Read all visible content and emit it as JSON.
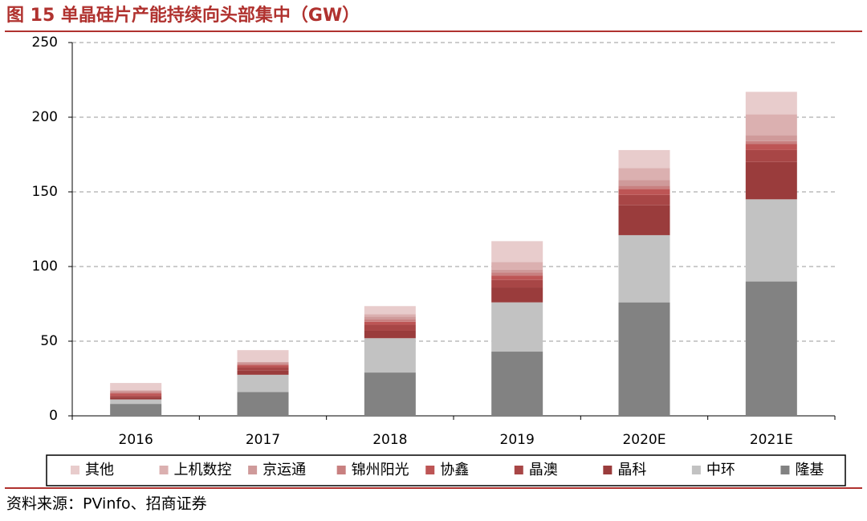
{
  "chart_data": {
    "type": "bar",
    "stacked": true,
    "title": "图 15  单晶硅片产能持续向头部集中（GW）",
    "source": "资料来源：PVinfo、招商证券",
    "categories": [
      "2016",
      "2017",
      "2018",
      "2019",
      "2020E",
      "2021E"
    ],
    "series": [
      {
        "name": "其他",
        "color": "#e8cccc",
        "values": [
          5,
          8,
          5.5,
          14,
          12,
          15
        ]
      },
      {
        "name": "上机数控",
        "color": "#dbb0b0",
        "values": [
          0,
          0,
          1.5,
          5,
          8,
          14
        ]
      },
      {
        "name": "京运通",
        "color": "#cf9a9a",
        "values": [
          1,
          1,
          2,
          2,
          4,
          4
        ]
      },
      {
        "name": "锦州阳光",
        "color": "#c88080",
        "values": [
          1,
          1,
          1.5,
          2,
          2,
          2
        ]
      },
      {
        "name": "协鑫",
        "color": "#bd5555",
        "values": [
          1.5,
          1.5,
          2,
          3,
          4,
          4
        ]
      },
      {
        "name": "晶澳",
        "color": "#a84646",
        "values": [
          1,
          2,
          4,
          5,
          7,
          8
        ]
      },
      {
        "name": "晶科",
        "color": "#9a3c3c",
        "values": [
          1.5,
          3,
          5,
          10,
          20,
          25
        ]
      },
      {
        "name": "中环",
        "color": "#c2c2c2",
        "values": [
          3,
          11.5,
          23,
          33,
          45,
          55
        ]
      },
      {
        "name": "隆基",
        "color": "#828282",
        "values": [
          8,
          16,
          29,
          43,
          76,
          90
        ]
      }
    ],
    "ylim": [
      0,
      250
    ],
    "yticks": [
      0,
      50,
      100,
      150,
      200,
      250
    ],
    "grid": true
  }
}
